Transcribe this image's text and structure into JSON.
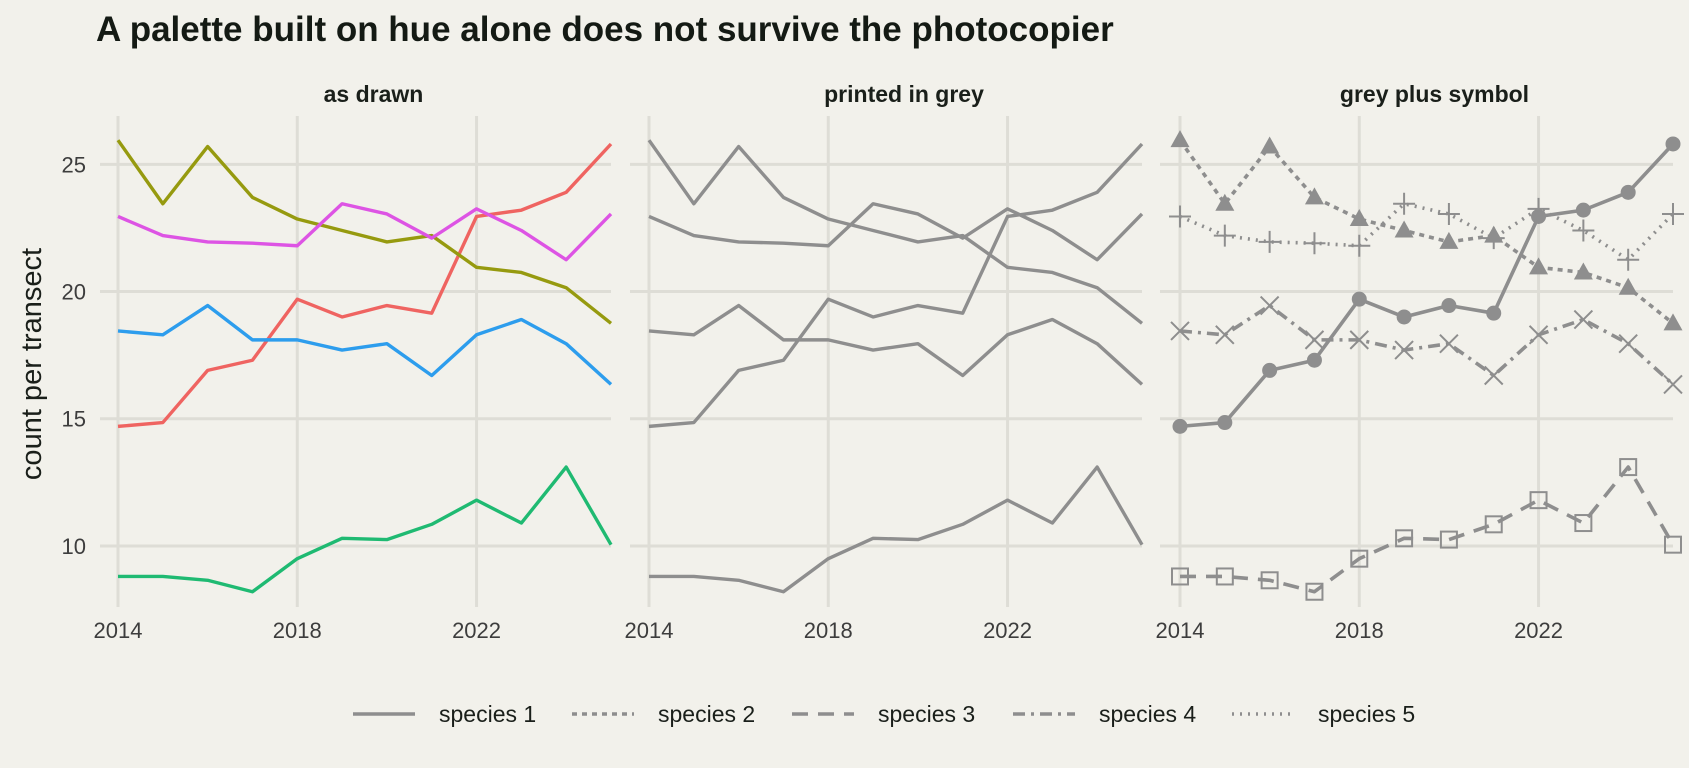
{
  "chart_data": {
    "type": "line",
    "title": "A palette built on hue alone does not survive the photocopier",
    "ylabel": "count per transect",
    "xlabel": "",
    "x": [
      2014,
      2015,
      2016,
      2017,
      2018,
      2019,
      2020,
      2021,
      2022,
      2023,
      2024,
      2025
    ],
    "x_ticks": [
      2014,
      2018,
      2022
    ],
    "y_ticks": [
      10,
      15,
      20,
      25
    ],
    "xlim": [
      2014,
      2025
    ],
    "ylim": [
      7.6,
      26.9
    ],
    "grid": true,
    "legend_position": "bottom",
    "panels": [
      {
        "title": "as drawn",
        "mode": "color"
      },
      {
        "title": "printed in grey",
        "mode": "grey"
      },
      {
        "title": "grey plus symbol",
        "mode": "symbol"
      }
    ],
    "series": [
      {
        "name": "species 1",
        "color": "#ef6461",
        "dash": "solid",
        "marker": "filled-circle",
        "values": [
          14.7,
          14.85,
          16.9,
          17.3,
          19.7,
          19.0,
          19.45,
          19.15,
          22.95,
          23.2,
          23.9,
          25.8
        ]
      },
      {
        "name": "species 2",
        "color": "#969a0f",
        "dash": "dotted-short",
        "marker": "filled-triangle",
        "values": [
          25.95,
          23.45,
          25.7,
          23.7,
          22.85,
          22.4,
          21.95,
          22.2,
          20.95,
          20.75,
          20.15,
          18.75
        ]
      },
      {
        "name": "species 3",
        "color": "#1fba72",
        "dash": "long-dash",
        "marker": "open-square",
        "values": [
          8.8,
          8.8,
          8.65,
          8.2,
          9.5,
          10.3,
          10.25,
          10.85,
          11.8,
          10.9,
          13.1,
          10.05
        ]
      },
      {
        "name": "species 4",
        "color": "#2d9ded",
        "dash": "dash-dot",
        "marker": "x-cross",
        "values": [
          18.45,
          18.3,
          19.45,
          18.1,
          18.1,
          17.7,
          17.95,
          16.7,
          18.3,
          18.9,
          17.95,
          16.35
        ]
      },
      {
        "name": "species 5",
        "color": "#dd54e4",
        "dash": "dotted",
        "marker": "plus",
        "values": [
          22.95,
          22.2,
          21.95,
          21.9,
          21.8,
          23.45,
          23.05,
          22.1,
          23.25,
          22.4,
          21.25,
          23.05
        ]
      }
    ],
    "grey_color": "#8e8e8e",
    "gridline_color": "#deddd6",
    "background": "#f2f1eb"
  }
}
